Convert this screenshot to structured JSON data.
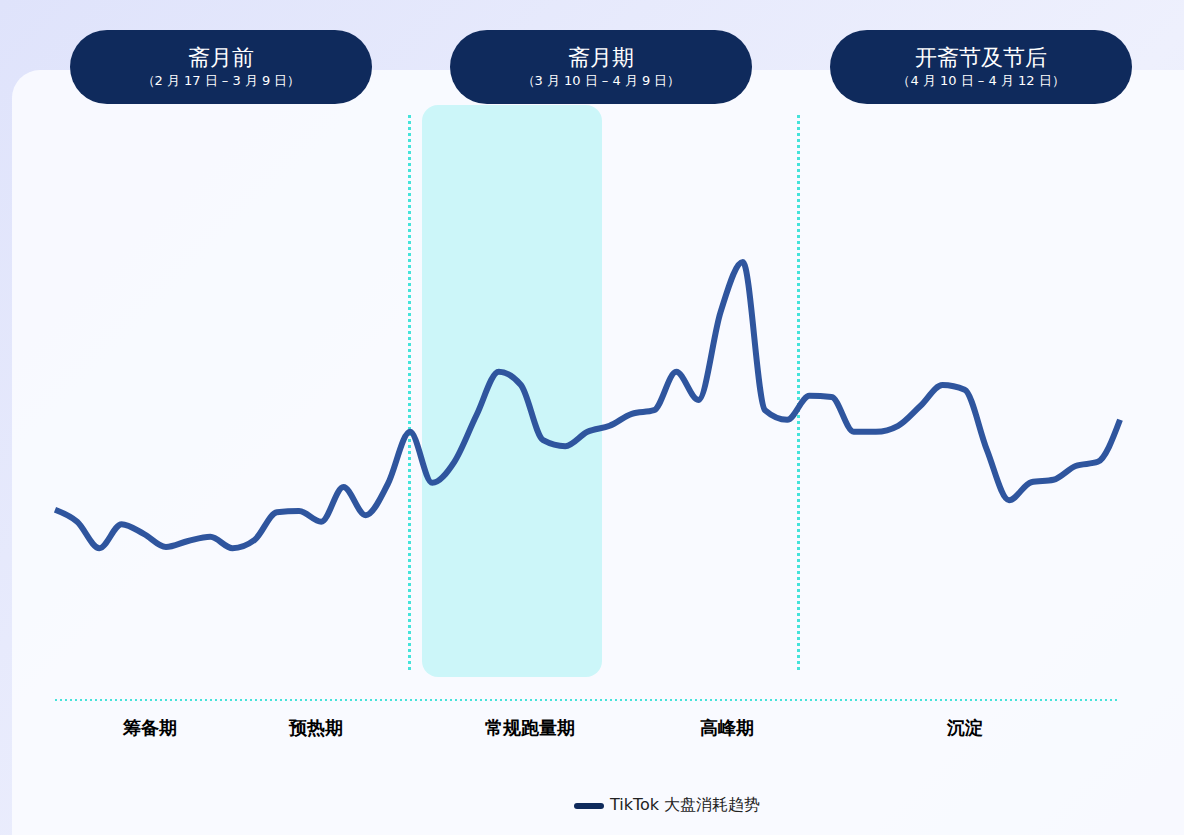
{
  "chart_data": {
    "type": "line",
    "periods": [
      {
        "label": "斋月前",
        "dates": "（2 月 17 日 – 3 月 9 日）"
      },
      {
        "label": "斋月期",
        "dates": "（3 月 10 日 – 4 月 9 日）"
      },
      {
        "label": "开斋节及节后",
        "dates": "（4 月 10 日 – 4 月 12 日）"
      }
    ],
    "phases": [
      "筹备期",
      "预热期",
      "常规跑量期",
      "高峰期",
      "沉淀"
    ],
    "categories": [
      null,
      null,
      null,
      null,
      null,
      null,
      null,
      null,
      null,
      null,
      null,
      null,
      null,
      null,
      null,
      null,
      null,
      null,
      null,
      null,
      null,
      null,
      null,
      null,
      null,
      null,
      null,
      null,
      null,
      null,
      null,
      null,
      null,
      null,
      null,
      null,
      null,
      null,
      null,
      null,
      null,
      null,
      null,
      null,
      null,
      null,
      null,
      null,
      null
    ],
    "series": [
      {
        "name": "TikTok 大盘消耗趋势",
        "color": "#2f559e",
        "values": [
          31.7,
          29.7,
          25.3,
          29.3,
          27.7,
          25.5,
          26.5,
          27.2,
          25.3,
          26.7,
          31.3,
          31.5,
          29.7,
          35.5,
          30.8,
          36,
          44.7,
          36.2,
          39.7,
          47.5,
          54.7,
          52.5,
          43.3,
          42.3,
          44.7,
          45.7,
          47.7,
          48.3,
          54.7,
          50,
          64.7,
          73,
          48.3,
          46.7,
          50.7,
          50.5,
          44.7,
          44.7,
          45.7,
          49,
          52.5,
          51.7,
          41.7,
          33.3,
          36.3,
          36.7,
          39,
          39.7,
          46.7
        ]
      }
    ],
    "ylim": [
      0,
      100
    ],
    "tick_labels": false,
    "grid": false,
    "legend": "bottom"
  }
}
